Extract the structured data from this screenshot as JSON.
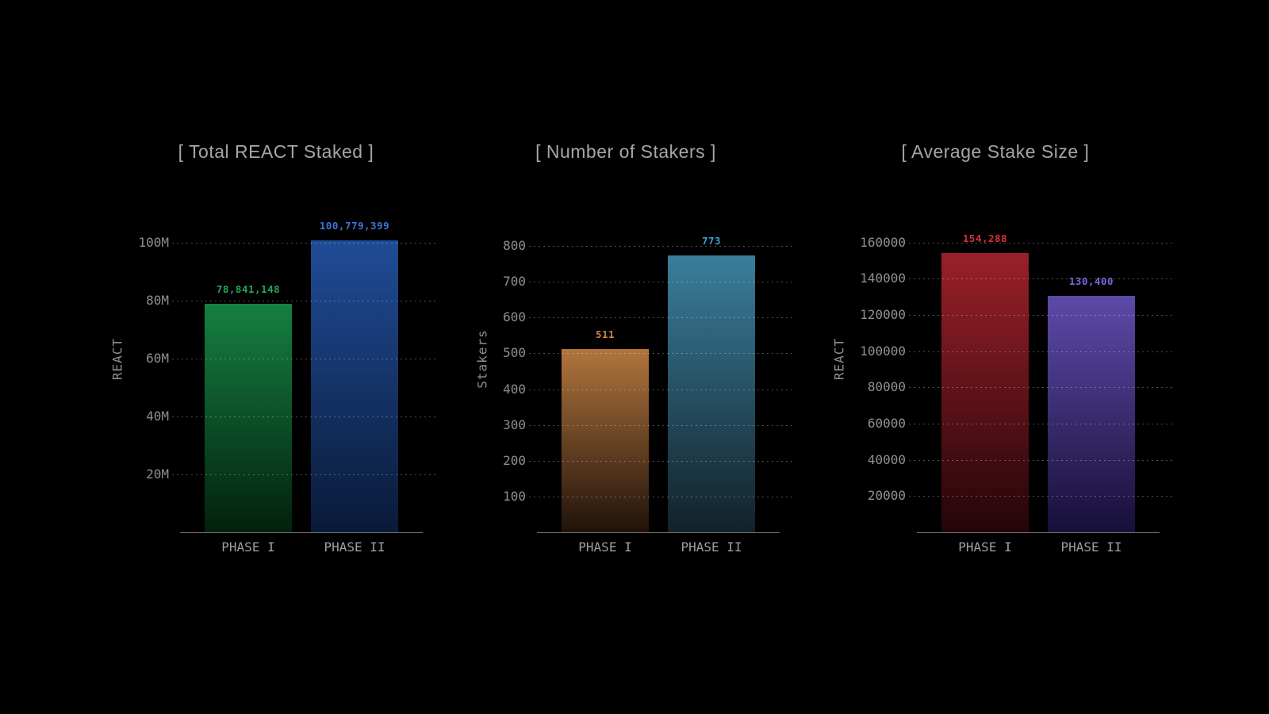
{
  "page": {
    "background_color": "#000000",
    "title_color": "#a6a6a6",
    "tick_color": "#8f8f8f",
    "category_color": "#9f9f9f",
    "axis_line_color": "#7a7a7a",
    "grid_style": "dotted"
  },
  "chart_data": [
    {
      "type": "bar",
      "title": "[ Total REACT Staked ]",
      "ylabel": "REACT",
      "xlabel": "",
      "categories": [
        "PHASE I",
        "PHASE II"
      ],
      "values": [
        78841148,
        100779399
      ],
      "ylim": [
        0,
        115000000
      ],
      "grid": "on",
      "legend": "none",
      "yticks": [
        {
          "value": 20000000,
          "label": "20M"
        },
        {
          "value": 40000000,
          "label": "40M"
        },
        {
          "value": 60000000,
          "label": "60M"
        },
        {
          "value": 80000000,
          "label": "80M"
        },
        {
          "value": 100000000,
          "label": "100M"
        }
      ],
      "bars": [
        {
          "category": "PHASE I",
          "value": 78841148,
          "label": "78,841,148",
          "label_color": "#27a654",
          "gradient_top": "#158040",
          "gradient_bottom": "#03200e"
        },
        {
          "category": "PHASE II",
          "value": 100779399,
          "label": "100,779,399",
          "label_color": "#3b76d8",
          "gradient_top": "#1f4c96",
          "gradient_bottom": "#0a1a38"
        }
      ]
    },
    {
      "type": "bar",
      "title": "[ Number of Stakers ]",
      "ylabel": "Stakers",
      "xlabel": "",
      "categories": [
        "PHASE I",
        "PHASE II"
      ],
      "values": [
        511,
        773
      ],
      "ylim": [
        0,
        931
      ],
      "grid": "on",
      "legend": "none",
      "yticks": [
        {
          "value": 100,
          "label": "100"
        },
        {
          "value": 200,
          "label": "200"
        },
        {
          "value": 300,
          "label": "300"
        },
        {
          "value": 400,
          "label": "400"
        },
        {
          "value": 500,
          "label": "500"
        },
        {
          "value": 600,
          "label": "600"
        },
        {
          "value": 700,
          "label": "700"
        },
        {
          "value": 800,
          "label": "800"
        }
      ],
      "bars": [
        {
          "category": "PHASE I",
          "value": 511,
          "label": "511",
          "label_color": "#cc8444",
          "gradient_top": "#b0753d",
          "gradient_bottom": "#20120a"
        },
        {
          "category": "PHASE II",
          "value": 773,
          "label": "773",
          "label_color": "#3f9ecd",
          "gradient_top": "#3a7e9b",
          "gradient_bottom": "#122129"
        }
      ]
    },
    {
      "type": "bar",
      "title": "[ Average Stake Size ]",
      "ylabel": "REACT",
      "xlabel": "",
      "categories": [
        "PHASE I",
        "PHASE II"
      ],
      "values": [
        154288,
        130400
      ],
      "ylim": [
        0,
        184000
      ],
      "grid": "on",
      "legend": "none",
      "yticks": [
        {
          "value": 20000,
          "label": "20000"
        },
        {
          "value": 40000,
          "label": "40000"
        },
        {
          "value": 60000,
          "label": "60000"
        },
        {
          "value": 80000,
          "label": "80000"
        },
        {
          "value": 100000,
          "label": "100000"
        },
        {
          "value": 120000,
          "label": "120000"
        },
        {
          "value": 140000,
          "label": "140000"
        },
        {
          "value": 160000,
          "label": "160000"
        }
      ],
      "bars": [
        {
          "category": "PHASE I",
          "value": 154288,
          "label": "154,288",
          "label_color": "#d9303c",
          "gradient_top": "#9a2029",
          "gradient_bottom": "#230509"
        },
        {
          "category": "PHASE II",
          "value": 130400,
          "label": "130,400",
          "label_color": "#7b68dd",
          "gradient_top": "#5d4aa8",
          "gradient_bottom": "#170f38"
        }
      ]
    }
  ]
}
